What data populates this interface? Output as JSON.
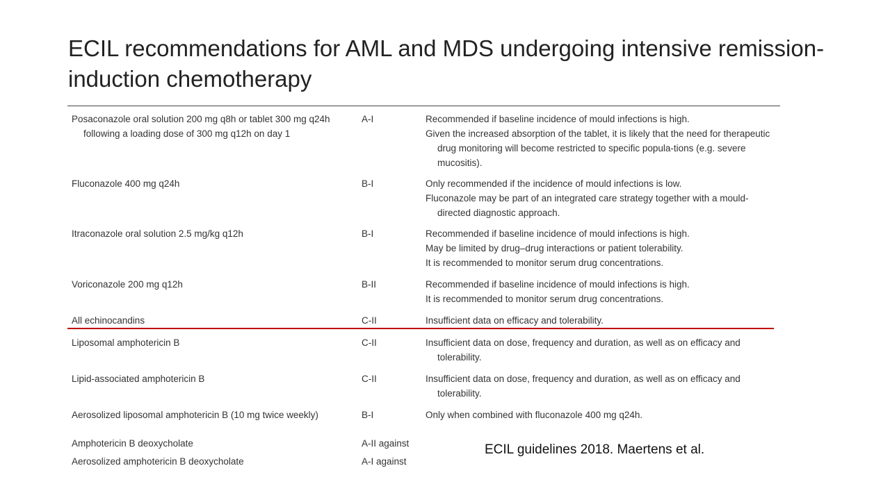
{
  "title": "ECIL recommendations for AML and MDS undergoing intensive remission-induction chemotherapy",
  "table": {
    "rows": [
      {
        "drug": "Posaconazole oral solution 200 mg q8h or tablet 300 mg q24h following a loading dose of 300 mg q12h on day 1",
        "grade": "A-I",
        "comments": [
          "Recommended if baseline incidence of mould infections is high.",
          "Given the increased absorption of the tablet, it is likely that the need for therapeutic drug monitoring will become restricted to specific popula-tions (e.g. severe mucositis)."
        ]
      },
      {
        "drug": "Fluconazole 400 mg q24h",
        "grade": "B-I",
        "comments": [
          "Only recommended if the incidence of mould infections is low.",
          "Fluconazole may be part of an integrated care strategy together with a mould-directed diagnostic approach."
        ]
      },
      {
        "drug": "Itraconazole oral solution 2.5 mg/kg q12h",
        "grade": "B-I",
        "comments": [
          "Recommended if baseline incidence of mould infections is high.",
          "May be limited by drug–drug interactions or patient tolerability.",
          "It is recommended to monitor serum drug concentrations."
        ]
      },
      {
        "drug": "Voriconazole 200 mg q12h",
        "grade": "B-II",
        "comments": [
          "Recommended if baseline incidence of mould infections is high.",
          "It is recommended to monitor serum drug concentrations."
        ]
      },
      {
        "drug": "All echinocandins",
        "grade": "C-II",
        "comments": [
          "Insufficient data on efficacy and tolerability."
        ]
      },
      {
        "drug": "Liposomal amphotericin B",
        "grade": "C-II",
        "comments": [
          "Insufficient data on dose, frequency and duration, as well as on efficacy and tolerability."
        ]
      },
      {
        "drug": "Lipid-associated amphotericin B",
        "grade": "C-II",
        "comments": [
          "Insufficient data on dose, frequency and duration, as well as on efficacy and tolerability."
        ]
      },
      {
        "drug": "Aerosolized liposomal amphotericin B (10 mg twice weekly)",
        "grade": "B-I",
        "comments": [
          "Only when combined with fluconazole 400 mg q24h."
        ]
      },
      {
        "drug": "Amphotericin B deoxycholate",
        "grade": "A-II against",
        "comments": []
      },
      {
        "drug": "Aerosolized amphotericin B deoxycholate",
        "grade": "A-I against",
        "comments": []
      }
    ]
  },
  "citation": "ECIL guidelines 2018. Maertens et al."
}
